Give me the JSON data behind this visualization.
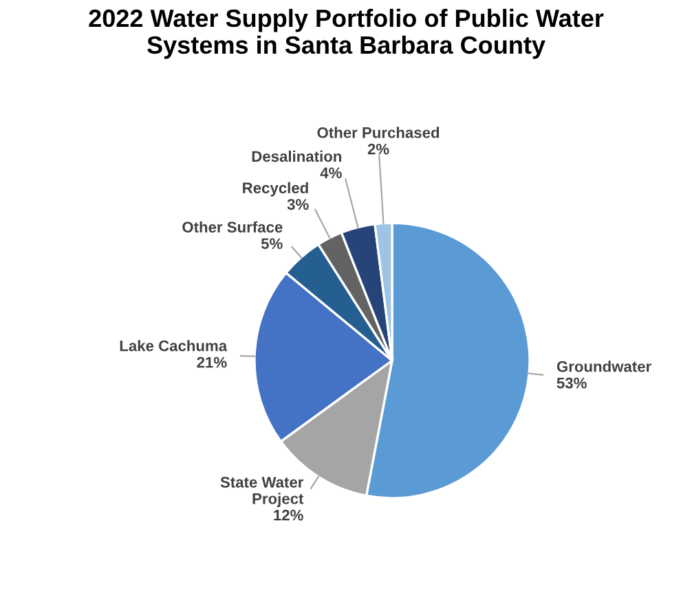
{
  "chart_data": {
    "type": "pie",
    "title": "2022 Water Supply Portfolio of Public Water\nSystems in Santa Barbara County",
    "categories": [
      "Groundwater",
      "State Water\nProject",
      "Lake Cachuma",
      "Other Surface",
      "Recycled",
      "Desalination",
      "Other Purchased"
    ],
    "values": [
      53,
      12,
      21,
      5,
      3,
      4,
      2
    ],
    "colors": [
      "#5b9bd5",
      "#a5a5a5",
      "#4472c4",
      "#255e91",
      "#636363",
      "#264478",
      "#9dc3e6"
    ],
    "value_labels": [
      "53%",
      "12%",
      "21%",
      "5%",
      "3%",
      "4%",
      "2%"
    ]
  }
}
